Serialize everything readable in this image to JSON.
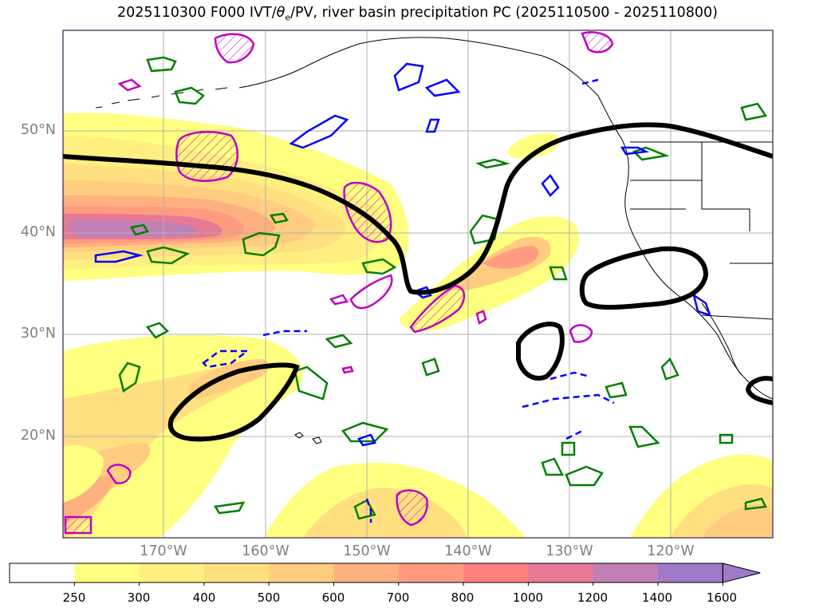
{
  "title": {
    "prefix": "2025110300 F000 IVT/",
    "theta": "θ",
    "theta_sub": "e",
    "suffix": "/PV, river basin precipitation PC (2025110500 - 2025110800)"
  },
  "map": {
    "latitude_labels": [
      "50°N",
      "40°N",
      "30°N",
      "20°N"
    ],
    "longitude_labels": [
      "170°W",
      "160°W",
      "150°W",
      "140°W",
      "130°W",
      "120°W"
    ],
    "gridlines": true,
    "colors": {
      "pv_contour": "#000000",
      "green_contour": "#008000",
      "blue_contour": "#0000ff",
      "magenta_contour": "#bf00bf",
      "coastline": "#000000",
      "gridline": "#b0b0b0",
      "frame": "#3d1f4a"
    }
  },
  "colorbar": {
    "ticks": [
      "250",
      "300",
      "400",
      "500",
      "600",
      "700",
      "800",
      "1000",
      "1200",
      "1400",
      "1600"
    ],
    "colors": [
      "#ffffff",
      "#ffff80",
      "#ffef80",
      "#ffdf80",
      "#ffcc80",
      "#ffb080",
      "#ff9c80",
      "#ff8080",
      "#e67a96",
      "#c080b5",
      "#a07ac8"
    ],
    "extend": "max"
  }
}
